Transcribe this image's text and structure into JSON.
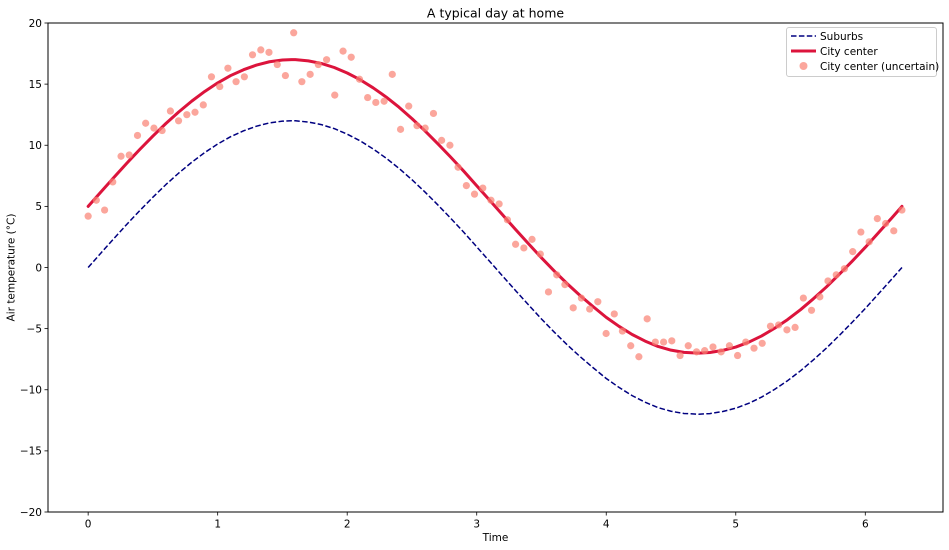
{
  "chart_data": {
    "type": "line",
    "title": "A typical day at home",
    "xlabel": "Time",
    "ylabel": "Air temperature (°C)",
    "xlim": [
      -0.31,
      6.6
    ],
    "ylim": [
      -20,
      20
    ],
    "xticks": [
      0,
      1,
      2,
      3,
      4,
      5,
      6
    ],
    "yticks": [
      -20,
      -15,
      -10,
      -5,
      0,
      5,
      10,
      15,
      20
    ],
    "grid": false,
    "legend_position": "top-right",
    "series": [
      {
        "name": "Suburbs",
        "kind": "line",
        "style": "dashed",
        "color": "#000080",
        "x": [
          0,
          0.1,
          0.2,
          0.3,
          0.4,
          0.5,
          0.6,
          0.7,
          0.8,
          0.9,
          1.0,
          1.1,
          1.2,
          1.3,
          1.4,
          1.5,
          1.5708,
          1.6,
          1.7,
          1.8,
          1.9,
          2.0,
          2.1,
          2.2,
          2.3,
          2.4,
          2.5,
          2.6,
          2.7,
          2.8,
          2.9,
          3.0,
          3.1,
          3.2,
          3.3,
          3.4,
          3.5,
          3.6,
          3.7,
          3.8,
          3.9,
          4.0,
          4.1,
          4.2,
          4.3,
          4.4,
          4.5,
          4.6,
          4.7124,
          4.8,
          4.9,
          5.0,
          5.1,
          5.2,
          5.3,
          5.4,
          5.5,
          5.6,
          5.7,
          5.8,
          5.9,
          6.0,
          6.1,
          6.2,
          6.2832
        ],
        "y": [
          0,
          1.2,
          2.38,
          3.55,
          4.67,
          5.75,
          6.78,
          7.73,
          8.61,
          9.4,
          10.1,
          10.7,
          11.18,
          11.56,
          11.83,
          11.97,
          12.0,
          12.0,
          11.9,
          11.69,
          11.36,
          10.91,
          10.36,
          9.7,
          8.95,
          8.11,
          7.18,
          6.18,
          5.12,
          4.02,
          2.88,
          1.69,
          0.5,
          -0.7,
          -1.89,
          -3.06,
          -4.21,
          -5.3,
          -6.34,
          -7.31,
          -8.21,
          -9.08,
          -9.82,
          -10.48,
          -11.02,
          -11.46,
          -11.76,
          -11.94,
          -12.0,
          -11.95,
          -11.78,
          -11.51,
          -11.11,
          -10.6,
          -9.97,
          -9.26,
          -8.45,
          -7.55,
          -6.59,
          -5.55,
          -4.47,
          -3.35,
          -2.18,
          -1.0,
          0
        ]
      },
      {
        "name": "City center",
        "kind": "line",
        "style": "solid",
        "color": "#dc143c",
        "x": [
          0,
          0.1,
          0.2,
          0.3,
          0.4,
          0.5,
          0.6,
          0.7,
          0.8,
          0.9,
          1.0,
          1.1,
          1.2,
          1.3,
          1.4,
          1.5,
          1.5708,
          1.6,
          1.7,
          1.8,
          1.9,
          2.0,
          2.1,
          2.2,
          2.3,
          2.4,
          2.5,
          2.6,
          2.7,
          2.8,
          2.9,
          3.0,
          3.1,
          3.2,
          3.3,
          3.4,
          3.5,
          3.6,
          3.7,
          3.8,
          3.9,
          4.0,
          4.1,
          4.2,
          4.3,
          4.4,
          4.5,
          4.6,
          4.7124,
          4.8,
          4.9,
          5.0,
          5.1,
          5.2,
          5.3,
          5.4,
          5.5,
          5.6,
          5.7,
          5.8,
          5.9,
          6.0,
          6.1,
          6.2,
          6.2832
        ],
        "y": [
          5,
          6.2,
          7.38,
          8.55,
          9.67,
          10.75,
          11.78,
          12.73,
          13.61,
          14.4,
          15.1,
          15.7,
          16.18,
          16.56,
          16.83,
          16.97,
          17.0,
          17.0,
          16.9,
          16.69,
          16.36,
          15.91,
          15.36,
          14.7,
          13.95,
          13.11,
          12.18,
          11.18,
          10.12,
          9.02,
          7.88,
          6.69,
          5.5,
          4.3,
          3.11,
          1.94,
          0.79,
          -0.3,
          -1.34,
          -2.31,
          -3.21,
          -4.08,
          -4.82,
          -5.48,
          -6.02,
          -6.46,
          -6.76,
          -6.94,
          -7.0,
          -6.95,
          -6.78,
          -6.51,
          -6.11,
          -5.6,
          -4.97,
          -4.26,
          -3.45,
          -2.55,
          -1.59,
          -0.55,
          0.53,
          1.65,
          2.82,
          4.0,
          5
        ]
      },
      {
        "name": "City center (uncertain)",
        "kind": "scatter",
        "color": "#fa8072",
        "x": [
          0.0,
          0.063,
          0.127,
          0.19,
          0.254,
          0.317,
          0.381,
          0.444,
          0.508,
          0.571,
          0.635,
          0.698,
          0.762,
          0.825,
          0.889,
          0.952,
          1.016,
          1.079,
          1.142,
          1.206,
          1.269,
          1.333,
          1.396,
          1.46,
          1.523,
          1.587,
          1.65,
          1.714,
          1.777,
          1.841,
          1.904,
          1.968,
          2.031,
          2.095,
          2.158,
          2.221,
          2.285,
          2.348,
          2.412,
          2.475,
          2.539,
          2.602,
          2.666,
          2.729,
          2.793,
          2.856,
          2.92,
          2.983,
          3.047,
          3.11,
          3.173,
          3.237,
          3.3,
          3.364,
          3.427,
          3.491,
          3.554,
          3.618,
          3.681,
          3.745,
          3.808,
          3.872,
          3.935,
          3.999,
          4.062,
          4.125,
          4.189,
          4.252,
          4.316,
          4.379,
          4.443,
          4.506,
          4.57,
          4.633,
          4.697,
          4.76,
          4.824,
          4.887,
          4.951,
          5.014,
          5.077,
          5.141,
          5.204,
          5.268,
          5.331,
          5.395,
          5.458,
          5.522,
          5.585,
          5.649,
          5.712,
          5.776,
          5.839,
          5.903,
          5.966,
          6.03,
          6.093,
          6.157,
          6.22,
          6.283
        ],
        "y": [
          4.2,
          5.5,
          4.7,
          7.0,
          9.1,
          9.2,
          10.8,
          11.8,
          11.4,
          11.2,
          12.8,
          12.0,
          12.5,
          12.7,
          13.3,
          15.6,
          14.8,
          16.3,
          15.2,
          15.6,
          17.4,
          17.8,
          17.6,
          16.6,
          15.7,
          19.2,
          15.2,
          15.8,
          16.6,
          17.0,
          14.1,
          17.7,
          17.2,
          15.4,
          13.9,
          13.5,
          13.6,
          15.8,
          11.3,
          13.2,
          11.6,
          11.4,
          12.6,
          10.4,
          10.0,
          8.2,
          6.7,
          6.0,
          6.5,
          5.5,
          5.2,
          3.9,
          1.9,
          1.6,
          2.3,
          1.1,
          -2.0,
          -0.6,
          -1.4,
          -3.3,
          -2.5,
          -3.4,
          -2.8,
          -5.4,
          -3.8,
          -5.2,
          -6.4,
          -7.3,
          -4.2,
          -6.1,
          -6.1,
          -6.0,
          -7.2,
          -6.4,
          -6.9,
          -6.8,
          -6.5,
          -6.9,
          -6.4,
          -7.2,
          -6.1,
          -6.6,
          -6.2,
          -4.8,
          -4.7,
          -5.1,
          -4.9,
          -2.5,
          -3.5,
          -2.4,
          -1.1,
          -0.6,
          -0.1,
          1.3,
          2.9,
          2.1,
          4.0,
          3.6,
          3.0,
          4.7
        ]
      }
    ]
  }
}
